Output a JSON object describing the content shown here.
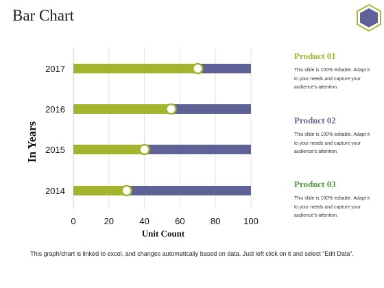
{
  "page": {
    "title": "Bar Chart",
    "footer_note": "This graph/chart is linked to excel, and changes automatically based on data. Just left click on it and select “Edit Data”."
  },
  "badge": {
    "icon": "hexagon-icon",
    "color": "#5f6296",
    "border_color": "#a8b83a"
  },
  "legend": [
    {
      "title": "Product 01",
      "color": "#a3b52c",
      "description": "This slide is 100% editable. Adapt it to your needs and capture your audience's attention."
    },
    {
      "title": "Product 02",
      "color": "#6a6b96",
      "description": "This slide is 100% editable. Adapt it to your needs and capture your audience's attention."
    },
    {
      "title": "Product 03",
      "color": "#4e9a3c",
      "description": "This slide is 100% editable. Adapt it to your needs and capture your audience's attention."
    }
  ],
  "chart_data": {
    "type": "bar",
    "orientation": "horizontal",
    "stacked": true,
    "categories": [
      "2017",
      "2016",
      "2015",
      "2014"
    ],
    "series": [
      {
        "values": [
          70,
          55,
          40,
          30
        ],
        "color": "#a3b52c"
      },
      {
        "values": [
          30,
          45,
          60,
          70
        ],
        "color": "#5f6296"
      }
    ],
    "marker_color": "#a3b52c",
    "xlabel": "Unit Count",
    "ylabel": "In Years",
    "xlim": [
      0,
      100
    ],
    "xticks": [
      "0",
      "20",
      "40",
      "60",
      "80",
      "100"
    ],
    "grid": true
  }
}
